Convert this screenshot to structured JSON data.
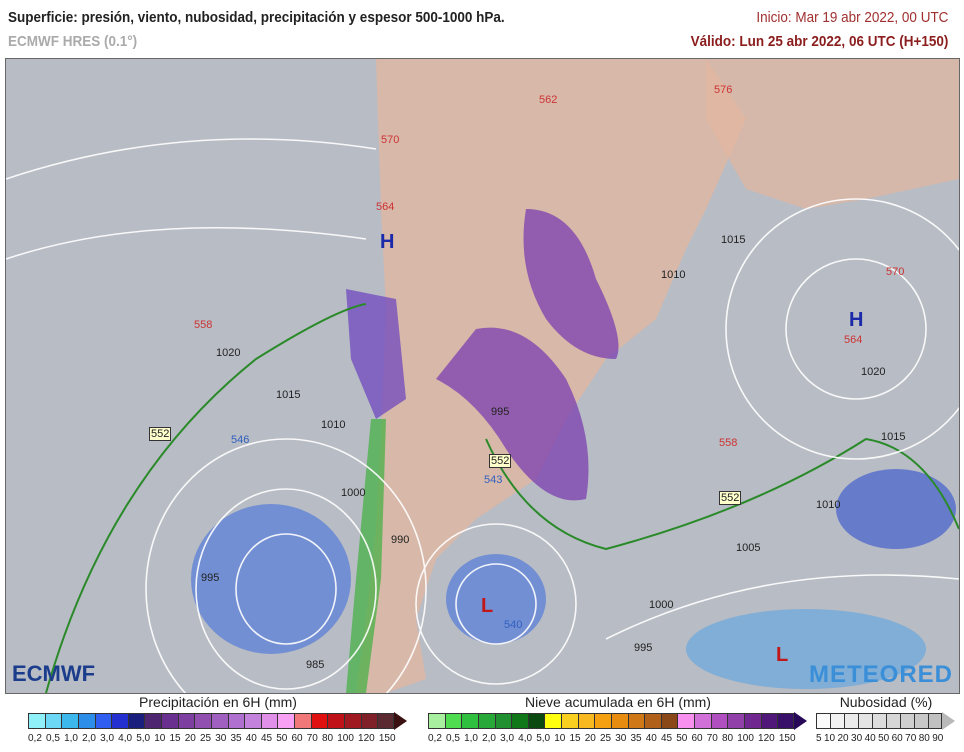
{
  "header": {
    "title": "Superficie: presión, viento, nubosidad, precipitación y espesor 500-1000 hPa.",
    "model": "ECMWF HRES (0.1°)",
    "init": "Inicio: Mar 19 abr 2022, 00 UTC",
    "valid": "Válido: Lun 25 abr 2022, 06 UTC (H+150)"
  },
  "map": {
    "isobars": [
      "1020",
      "1015",
      "1010",
      "1000",
      "995",
      "990",
      "985",
      "995",
      "1010",
      "1015",
      "1020",
      "1015",
      "1010",
      "1005",
      "1000",
      "995"
    ],
    "thickness": [
      "558",
      "552",
      "552",
      "552",
      "546",
      "570",
      "564",
      "562",
      "576",
      "570",
      "564",
      "558",
      "540",
      "543"
    ],
    "highs": [
      "H",
      "H"
    ],
    "lows": [
      "L",
      "L"
    ],
    "logo_left": "ECMWF",
    "logo_right": "METEORED",
    "colors": {
      "ocean": "#b8bcc4",
      "land": "#e3b7a0",
      "thickness_552": "#2a8a2a",
      "isobar": "#ffffff",
      "precip": "#7b3fb0"
    }
  },
  "legends": {
    "precip": {
      "title": "Precipitación en 6H (mm)",
      "ticks": [
        "0,2",
        "0,5",
        "1,0",
        "2,0",
        "3,0",
        "4,0",
        "5,0",
        "10",
        "15",
        "20",
        "25",
        "30",
        "35",
        "40",
        "45",
        "50",
        "60",
        "70",
        "80",
        "100",
        "120",
        "150"
      ],
      "colors": [
        "#8ff0fa",
        "#6cd8f5",
        "#3cb8ec",
        "#2c8ee8",
        "#2f5ef0",
        "#2430d0",
        "#1a1e7c",
        "#4e2570",
        "#6a3090",
        "#7d3fa0",
        "#9150b0",
        "#a060c0",
        "#b070d0",
        "#c382dc",
        "#e090e8",
        "#f8a0f4",
        "#f07878",
        "#e01010",
        "#c01018",
        "#a01820",
        "#802028",
        "#5a2a30"
      ],
      "arrow": "#3a1010"
    },
    "snow": {
      "title": "Nieve acumulada en 6H (mm)",
      "ticks": [
        "0,2",
        "0,5",
        "1,0",
        "2,0",
        "3,0",
        "4,0",
        "5,0",
        "10",
        "15",
        "20",
        "25",
        "30",
        "35",
        "40",
        "45",
        "50",
        "60",
        "70",
        "80",
        "100",
        "120",
        "150"
      ],
      "colors": [
        "#a8f0a0",
        "#50dc50",
        "#30c040",
        "#28a838",
        "#209030",
        "#107818",
        "#0a4a10",
        "#ffff10",
        "#fad020",
        "#f8b820",
        "#f5a010",
        "#e88c10",
        "#d07818",
        "#b06018",
        "#8a4818",
        "#f890f0",
        "#d070d8",
        "#b050c0",
        "#9040a8",
        "#702890",
        "#501878",
        "#38106a"
      ],
      "arrow": "#280858"
    },
    "cloud": {
      "title": "Nubosidad (%)",
      "ticks": [
        "5",
        "10",
        "20",
        "30",
        "40",
        "50",
        "60",
        "70",
        "80",
        "90"
      ],
      "colors": [
        "#fafafa",
        "#f2f2f2",
        "#ebebeb",
        "#e4e4e4",
        "#dddddd",
        "#d6d6d6",
        "#cfcfcf",
        "#c8c8c8",
        "#c0c0c0"
      ],
      "arrow": "#b8b8b8"
    }
  }
}
